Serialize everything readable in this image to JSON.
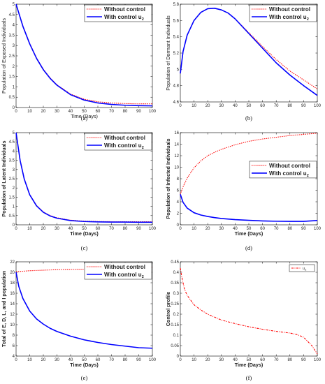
{
  "chart_data": [
    {
      "id": "a",
      "caption": "(a)",
      "type": "line",
      "xlabel": "Time (Days)",
      "ylabel": "Population of Exposed Individuals",
      "xlim": [
        0,
        100
      ],
      "ylim": [
        0,
        5
      ],
      "xticks": [
        "0",
        "10",
        "20",
        "30",
        "40",
        "50",
        "60",
        "70",
        "80",
        "90",
        "100"
      ],
      "yticks": [
        "0",
        "0.5",
        "1",
        "1.5",
        "2",
        "2.5",
        "3",
        "3.5",
        "4",
        "4.5",
        "5"
      ],
      "legend": "top-right",
      "label_bold": false,
      "series": [
        {
          "name": "Without control",
          "color": "#ff0000",
          "style": "dotted",
          "x": [
            0,
            5,
            10,
            15,
            20,
            25,
            30,
            40,
            50,
            60,
            70,
            80,
            90,
            100
          ],
          "y": [
            5,
            3.95,
            3.1,
            2.4,
            1.85,
            1.43,
            1.1,
            0.65,
            0.4,
            0.28,
            0.22,
            0.19,
            0.18,
            0.18
          ]
        },
        {
          "name": "With control u2",
          "color": "#0000ff",
          "style": "solid",
          "x": [
            0,
            5,
            10,
            15,
            20,
            25,
            30,
            40,
            50,
            60,
            70,
            80,
            90,
            100
          ],
          "y": [
            5,
            3.93,
            3.08,
            2.38,
            1.83,
            1.41,
            1.08,
            0.62,
            0.36,
            0.22,
            0.15,
            0.11,
            0.09,
            0.08
          ]
        }
      ]
    },
    {
      "id": "b",
      "caption": "(b)",
      "type": "line",
      "xlabel": "",
      "ylabel": "Population of Dormant Individuals",
      "xlim": [
        0,
        100
      ],
      "ylim": [
        4.6,
        5.8
      ],
      "xticks": [
        "0",
        "10",
        "20",
        "30",
        "40",
        "50",
        "60",
        "70",
        "80",
        "90",
        "100"
      ],
      "yticks": [
        "4.6",
        "4.8",
        "5",
        "5.2",
        "5.4",
        "5.6",
        "5.8"
      ],
      "legend": "top-right",
      "label_bold": false,
      "series": [
        {
          "name": "Without control",
          "color": "#ff0000",
          "style": "dotted",
          "x": [
            0,
            2,
            5,
            10,
            15,
            20,
            25,
            30,
            35,
            40,
            50,
            60,
            70,
            80,
            90,
            100
          ],
          "y": [
            4.95,
            5.22,
            5.42,
            5.6,
            5.7,
            5.745,
            5.75,
            5.73,
            5.69,
            5.62,
            5.45,
            5.28,
            5.12,
            4.98,
            4.87,
            4.76
          ]
        },
        {
          "name": "With control u2",
          "color": "#0000ff",
          "style": "solid",
          "x": [
            0,
            2,
            5,
            10,
            15,
            20,
            25,
            30,
            35,
            40,
            50,
            60,
            70,
            80,
            90,
            100
          ],
          "y": [
            4.95,
            5.22,
            5.42,
            5.6,
            5.7,
            5.745,
            5.75,
            5.73,
            5.69,
            5.62,
            5.44,
            5.26,
            5.08,
            4.93,
            4.8,
            4.68
          ]
        }
      ]
    },
    {
      "id": "c",
      "caption": "(c)",
      "type": "line",
      "xlabel": "Time (Days)",
      "ylabel": "Population of Latent Individuals",
      "xlim": [
        0,
        100
      ],
      "ylim": [
        0,
        5
      ],
      "xticks": [
        "0",
        "10",
        "20",
        "30",
        "40",
        "50",
        "60",
        "70",
        "80",
        "90",
        "100"
      ],
      "yticks": [
        "0",
        "0.5",
        "1",
        "1.5",
        "2",
        "2.5",
        "3",
        "3.5",
        "4",
        "4.5",
        "5"
      ],
      "legend": "top-right",
      "label_bold": true,
      "series": [
        {
          "name": "Without control",
          "color": "#ff0000",
          "style": "dotted",
          "x": [
            0,
            3,
            6,
            10,
            15,
            20,
            25,
            30,
            40,
            50,
            60,
            70,
            80,
            90,
            100
          ],
          "y": [
            5,
            3.5,
            2.5,
            1.65,
            1.05,
            0.7,
            0.5,
            0.38,
            0.25,
            0.2,
            0.18,
            0.17,
            0.17,
            0.17,
            0.17
          ]
        },
        {
          "name": "With control u2",
          "color": "#0000ff",
          "style": "solid",
          "x": [
            0,
            3,
            6,
            10,
            15,
            20,
            25,
            30,
            40,
            50,
            60,
            70,
            80,
            90,
            100
          ],
          "y": [
            5,
            3.48,
            2.48,
            1.63,
            1.03,
            0.68,
            0.48,
            0.36,
            0.23,
            0.18,
            0.16,
            0.15,
            0.15,
            0.14,
            0.14
          ]
        }
      ]
    },
    {
      "id": "d",
      "caption": "(d)",
      "type": "line",
      "xlabel": "Time (Days)",
      "ylabel": "Population of Infected Individuals",
      "xlim": [
        0,
        100
      ],
      "ylim": [
        0,
        16
      ],
      "xticks": [
        "0",
        "10",
        "20",
        "30",
        "40",
        "50",
        "60",
        "70",
        "80",
        "90",
        "100"
      ],
      "yticks": [
        "0",
        "2",
        "4",
        "6",
        "8",
        "10",
        "12",
        "14",
        "16"
      ],
      "legend": "middle-right",
      "label_bold": true,
      "series": [
        {
          "name": "Without control",
          "color": "#ff0000",
          "style": "dotted",
          "x": [
            0,
            2,
            5,
            10,
            15,
            20,
            25,
            30,
            40,
            50,
            60,
            70,
            80,
            90,
            100
          ],
          "y": [
            5.3,
            6.6,
            8.1,
            9.9,
            11.1,
            12,
            12.6,
            13.1,
            13.9,
            14.5,
            14.9,
            15.2,
            15.5,
            15.7,
            15.9
          ]
        },
        {
          "name": "With control u2",
          "color": "#0000ff",
          "style": "solid",
          "x": [
            0,
            2,
            5,
            10,
            15,
            20,
            25,
            30,
            40,
            50,
            60,
            70,
            80,
            90,
            100
          ],
          "y": [
            5.3,
            3.9,
            2.9,
            2.1,
            1.7,
            1.45,
            1.25,
            1.1,
            0.9,
            0.78,
            0.68,
            0.62,
            0.6,
            0.6,
            0.75
          ]
        }
      ]
    },
    {
      "id": "e",
      "caption": "(e)",
      "type": "line",
      "xlabel": "Time (Days)",
      "ylabel": "Total of E, D, L, and I population",
      "xlim": [
        0,
        100
      ],
      "ylim": [
        4,
        22
      ],
      "xticks": [
        "0",
        "10",
        "20",
        "30",
        "40",
        "50",
        "60",
        "70",
        "80",
        "90",
        "100"
      ],
      "yticks": [
        "4",
        "6",
        "8",
        "10",
        "12",
        "14",
        "16",
        "18",
        "20",
        "22"
      ],
      "legend": "top-right",
      "label_bold": true,
      "series": [
        {
          "name": "Without control",
          "color": "#ff0000",
          "style": "dotted",
          "x": [
            0,
            10,
            20,
            30,
            40,
            50,
            60,
            70,
            80,
            90,
            100
          ],
          "y": [
            20.1,
            20.3,
            20.4,
            20.5,
            20.55,
            20.6,
            20.7,
            20.75,
            20.85,
            20.9,
            21.0
          ]
        },
        {
          "name": "With control u2",
          "color": "#0000ff",
          "style": "solid",
          "x": [
            0,
            2,
            5,
            10,
            15,
            20,
            25,
            30,
            40,
            50,
            60,
            70,
            80,
            90,
            100
          ],
          "y": [
            20,
            17.3,
            15,
            12.6,
            11.1,
            10.1,
            9.3,
            8.7,
            7.8,
            7.1,
            6.6,
            6.2,
            5.9,
            5.6,
            5.5
          ]
        }
      ]
    },
    {
      "id": "f",
      "caption": "(f)",
      "type": "line",
      "xlabel": "Time (Days)",
      "ylabel": "Control profile",
      "xlim": [
        0,
        100
      ],
      "ylim": [
        0,
        0.45
      ],
      "xticks": [
        "0",
        "10",
        "20",
        "30",
        "40",
        "50",
        "60",
        "70",
        "80",
        "90",
        "100"
      ],
      "yticks": [
        "0",
        "0.05",
        "0.1",
        "0.15",
        "0.2",
        "0.25",
        "0.3",
        "0.35",
        "0.4",
        "0.45"
      ],
      "legend": "top-right-small",
      "label_bold": true,
      "series": [
        {
          "name": "u2",
          "color": "#ff0000",
          "style": "dashdot",
          "x": [
            0,
            1,
            3,
            5,
            10,
            15,
            20,
            30,
            40,
            50,
            60,
            70,
            80,
            85,
            90,
            93,
            96,
            98,
            100
          ],
          "y": [
            0.42,
            0.38,
            0.32,
            0.29,
            0.245,
            0.22,
            0.2,
            0.172,
            0.155,
            0.14,
            0.128,
            0.118,
            0.11,
            0.103,
            0.09,
            0.07,
            0.05,
            0.03,
            0.01
          ]
        }
      ]
    }
  ]
}
